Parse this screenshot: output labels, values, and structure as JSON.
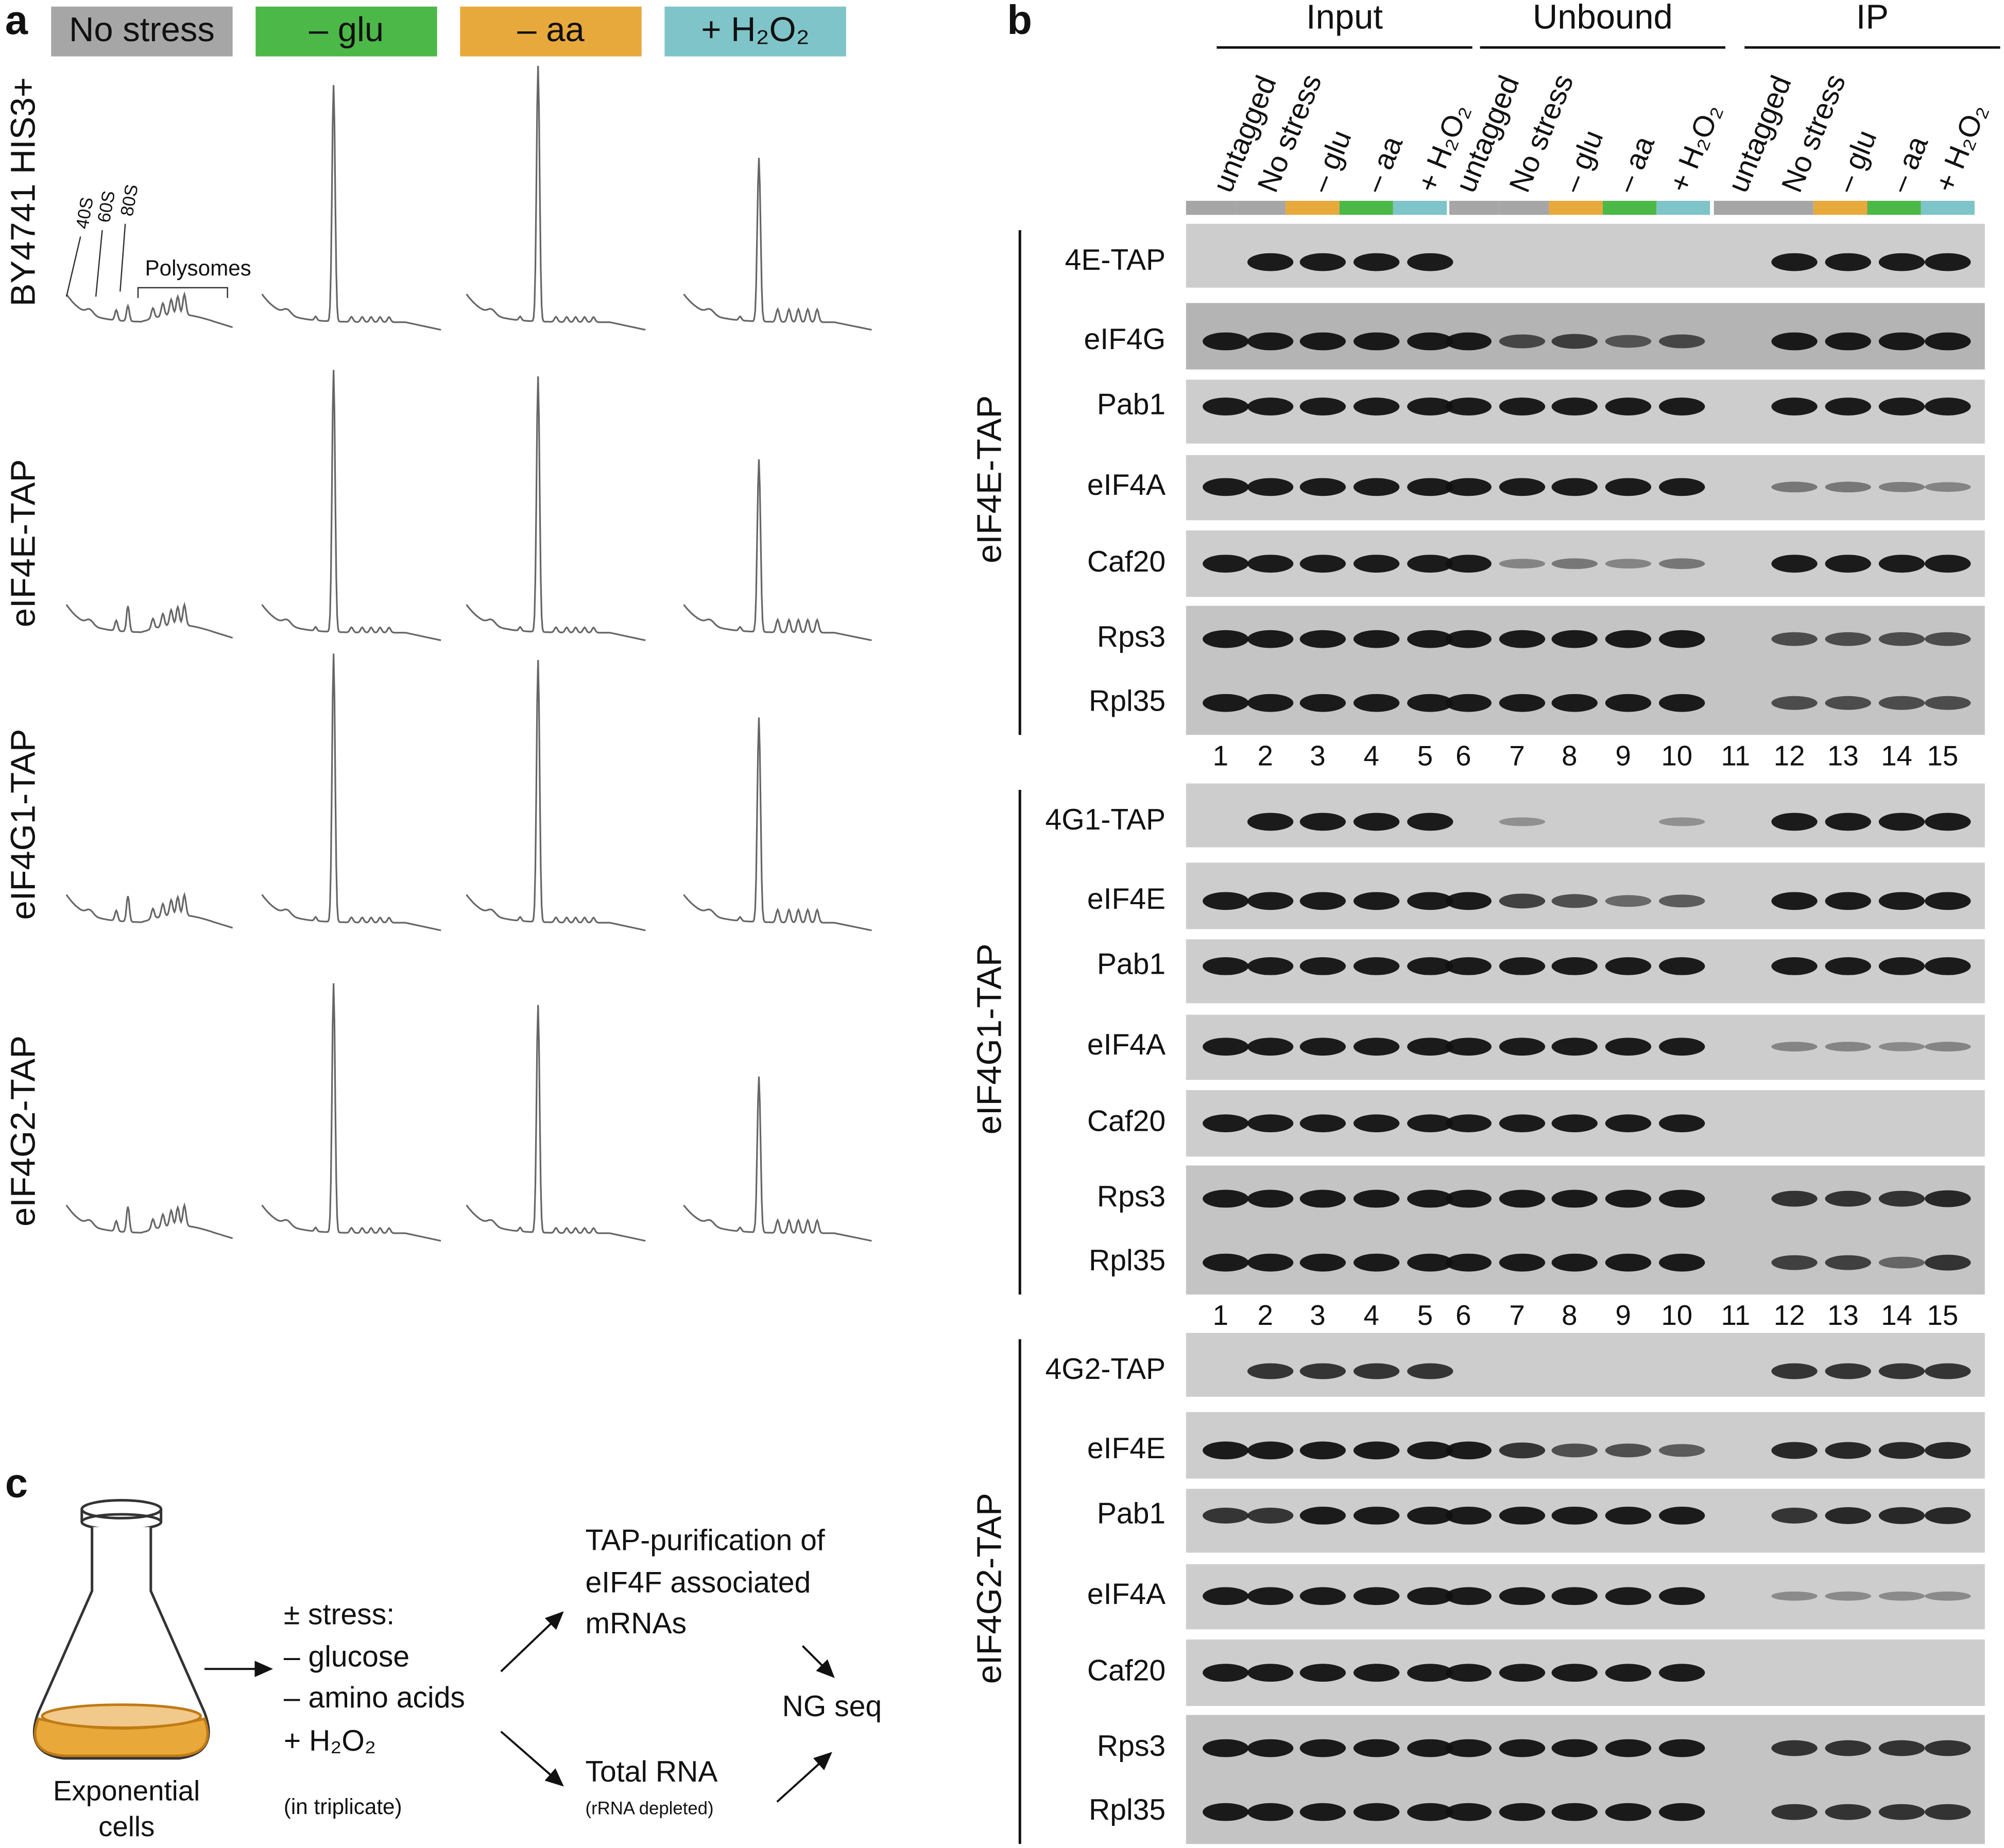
{
  "panel_a": {
    "label": "a",
    "conditions": [
      "No stress",
      "– glu",
      "– aa",
      "+ H₂O₂"
    ],
    "strains": [
      "BY4741 HIS3+",
      "eIF4E-TAP",
      "eIF4G1-TAP",
      "eIF4G2-TAP"
    ],
    "peaks": [
      "40S",
      "60S",
      "80S"
    ],
    "polysomes": "Polysomes"
  },
  "panel_b": {
    "label": "b",
    "groups": [
      "Input",
      "Unbound",
      "IP"
    ],
    "lane_labels": [
      "untagged",
      "No stress",
      "– glu",
      "– aa",
      "+ H₂O₂",
      "untagged",
      "No stress",
      "– glu",
      "– aa",
      "+ H₂O₂",
      "untagged",
      "No stress",
      "– glu",
      "– aa",
      "+ H₂O₂"
    ],
    "blots": [
      {
        "bait": "eIF4E-TAP",
        "rows": [
          "4E-TAP",
          "eIF4G",
          "Pab1",
          "eIF4A",
          "Caf20",
          "Rps3",
          "Rpl35"
        ],
        "lane_numbers": [
          1,
          2,
          3,
          4,
          5,
          6,
          7,
          8,
          9,
          10,
          11,
          12,
          13,
          14,
          15
        ]
      },
      {
        "bait": "eIF4G1-TAP",
        "rows": [
          "4G1-TAP",
          "eIF4E",
          "Pab1",
          "eIF4A",
          "Caf20",
          "Rps3",
          "Rpl35"
        ],
        "lane_numbers": [
          1,
          2,
          3,
          4,
          5,
          6,
          7,
          8,
          9,
          10,
          11,
          12,
          13,
          14,
          15
        ]
      },
      {
        "bait": "eIF4G2-TAP",
        "rows": [
          "4G2-TAP",
          "eIF4E",
          "Pab1",
          "eIF4A",
          "Caf20",
          "Rps3",
          "Rpl35"
        ]
      }
    ]
  },
  "panel_c": {
    "label": "c",
    "flask": [
      "Exponential",
      "cells"
    ],
    "stress": [
      "± stress:",
      "– glucose",
      "– amino acids",
      "+ H₂O₂"
    ],
    "replicates": "(in triplicate)",
    "purification": [
      "TAP-purification of",
      "eIF4F associated",
      "mRNAs"
    ],
    "total": "Total RNA",
    "total_note": "(rRNA depleted)",
    "sequencing": "NG seq"
  }
}
